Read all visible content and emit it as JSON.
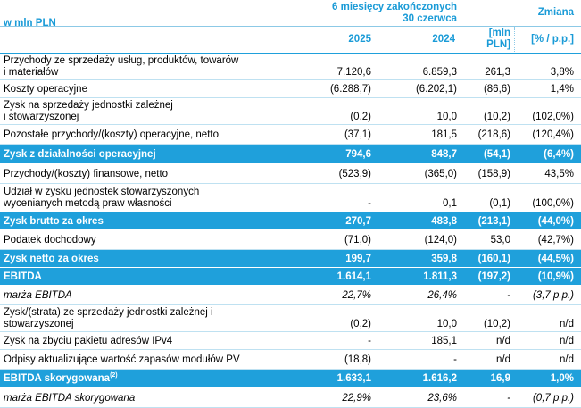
{
  "header": {
    "unit": "w mln PLN",
    "period": "6 miesięcy zakończonych 30 czerwca",
    "period_line1": "6 miesięcy zakończonych",
    "period_line2": "30 czerwca",
    "change": "Zmiana",
    "year1": "2025",
    "year2": "2024",
    "unit_mln_line1": "[mln",
    "unit_mln_line2": "PLN]",
    "unit_pct": "[% / p.p.]"
  },
  "rows": [
    {
      "label": "Przychody ze sprzedaży usług, produktów, towarów i materiałów",
      "l1": "Przychody ze sprzedaży usług, produktów, towarów",
      "l2": "i materiałów",
      "v2025": "7.120,6",
      "v2024": "6.859,3",
      "diff": "261,3",
      "pct": "3,8%"
    },
    {
      "label": "Koszty operacyjne",
      "v2025": "(6.288,7)",
      "v2024": "(6.202,1)",
      "diff": "(86,6)",
      "pct": "1,4%"
    },
    {
      "label": "Zysk na sprzedaży jednostki zależnej i stowarzyszonej",
      "l1": "Zysk na sprzedaży jednostki zależnej",
      "l2": "i stowarzyszonej",
      "v2025": "(0,2)",
      "v2024": "10,0",
      "diff": "(10,2)",
      "pct": "(102,0%)"
    },
    {
      "label": "Pozostałe przychody/(koszty) operacyjne, netto",
      "v2025": "(37,1)",
      "v2024": "181,5",
      "diff": "(218,6)",
      "pct": "(120,4%)"
    },
    {
      "label": "Zysk z działalności operacyjnej",
      "v2025": "794,6",
      "v2024": "848,7",
      "diff": "(54,1)",
      "pct": "(6,4%)"
    },
    {
      "label": "Przychody/(koszty) finansowe, netto",
      "v2025": "(523,9)",
      "v2024": "(365,0)",
      "diff": "(158,9)",
      "pct": "43,5%"
    },
    {
      "label": "Udział w zysku jednostek stowarzyszonych wycenianych metodą praw własności",
      "l1": "Udział w zysku jednostek stowarzyszonych",
      "l2": "wycenianych metodą praw własności",
      "v2025": "-",
      "v2024": "0,1",
      "diff": "(0,1)",
      "pct": "(100,0%)"
    },
    {
      "label": "Zysk brutto za okres",
      "v2025": "270,7",
      "v2024": "483,8",
      "diff": "(213,1)",
      "pct": "(44,0%)"
    },
    {
      "label": "Podatek dochodowy",
      "v2025": "(71,0)",
      "v2024": "(124,0)",
      "diff": "53,0",
      "pct": "(42,7%)"
    },
    {
      "label": "Zysk netto za okres",
      "v2025": "199,7",
      "v2024": "359,8",
      "diff": "(160,1)",
      "pct": "(44,5%)"
    },
    {
      "label": "EBITDA",
      "v2025": "1.614,1",
      "v2024": "1.811,3",
      "diff": "(197,2)",
      "pct": "(10,9%)"
    },
    {
      "label": "marża EBITDA",
      "v2025": "22,7%",
      "v2024": "26,4%",
      "diff": "-",
      "pct": "(3,7 p.p.)"
    },
    {
      "label": "Zysk/(strata) ze sprzedaży jednostki zależnej i stowarzyszonej",
      "l1": "Zysk/(strata) ze sprzedaży jednostki zależnej i",
      "l2": "stowarzyszonej",
      "v2025": "(0,2)",
      "v2024": "10,0",
      "diff": "(10,2)",
      "pct": "n/d"
    },
    {
      "label": "Zysk na zbyciu pakietu adresów IPv4",
      "v2025": "-",
      "v2024": "185,1",
      "diff": "n/d",
      "pct": "n/d"
    },
    {
      "label": "Odpisy aktualizujące wartość zapasów modułów PV",
      "v2025": "(18,8)",
      "v2024": "-",
      "diff": "n/d",
      "pct": "n/d"
    },
    {
      "label": "EBITDA skorygowana",
      "sup": "(2)",
      "v2025": "1.633,1",
      "v2024": "1.616,2",
      "diff": "16,9",
      "pct": "1,0%"
    },
    {
      "label": "marża EBITDA skorygowana",
      "v2025": "22,9%",
      "v2024": "23,6%",
      "diff": "-",
      "pct": "(0,7 p.p.)"
    }
  ]
}
